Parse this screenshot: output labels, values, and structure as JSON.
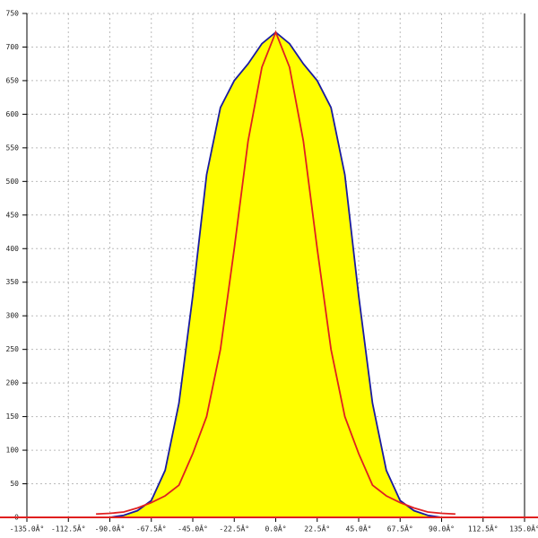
{
  "chart_data": {
    "type": "area-line",
    "x": [
      -97.5,
      -90,
      -82.5,
      -75,
      -67.5,
      -60,
      -52.5,
      -45,
      -37.5,
      -30,
      -22.5,
      -15,
      -7.5,
      0,
      7.5,
      15,
      22.5,
      30,
      37.5,
      45,
      52.5,
      60,
      67.5,
      75,
      82.5,
      90,
      97.5
    ],
    "series": [
      {
        "color": "#1a1aa0",
        "fill": "#ffff00",
        "values": [
          0,
          0,
          3,
          10,
          25,
          70,
          170,
          330,
          510,
          610,
          650,
          675,
          705,
          722,
          705,
          675,
          650,
          610,
          510,
          330,
          170,
          70,
          25,
          10,
          3,
          0,
          0
        ]
      },
      {
        "color": "#e02020",
        "values": [
          5,
          6,
          8,
          14,
          22,
          32,
          48,
          95,
          150,
          250,
          400,
          560,
          670,
          722,
          670,
          560,
          400,
          250,
          150,
          95,
          48,
          32,
          22,
          14,
          8,
          6,
          5
        ]
      }
    ],
    "xlim": [
      -135,
      135
    ],
    "xticks": [
      {
        "value": -135,
        "label": "-135.0Â°"
      },
      {
        "value": -112.5,
        "label": "-112.5Â°"
      },
      {
        "value": -90,
        "label": "-90.0Â°"
      },
      {
        "value": -67.5,
        "label": "-67.5Â°"
      },
      {
        "value": -45,
        "label": "-45.0Â°"
      },
      {
        "value": -22.5,
        "label": "-22.5Â°"
      },
      {
        "value": 0,
        "label": "0.0Â°"
      },
      {
        "value": 22.5,
        "label": "22.5Â°"
      },
      {
        "value": 45,
        "label": "45.0Â°"
      },
      {
        "value": 67.5,
        "label": "67.5Â°"
      },
      {
        "value": 90,
        "label": "90.0Â°"
      },
      {
        "value": 112.5,
        "label": "112.5Â°"
      },
      {
        "value": 135,
        "label": "135.0Â°"
      }
    ],
    "ylim": [
      0,
      750
    ],
    "yticks": [
      0,
      50,
      100,
      150,
      200,
      250,
      300,
      350,
      400,
      450,
      500,
      550,
      600,
      650,
      700,
      750
    ],
    "grid": true,
    "axis_color": "#e02020"
  }
}
